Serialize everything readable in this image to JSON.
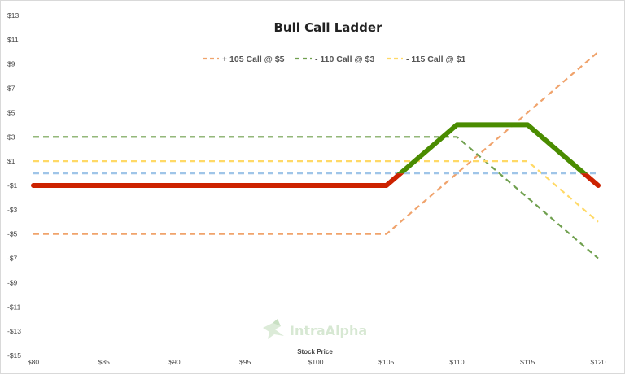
{
  "chart_data": {
    "type": "line",
    "title": "Bull Call Ladder",
    "xlabel": "Stock Price",
    "ylabel": "",
    "xlim": [
      80,
      120
    ],
    "ylim": [
      -15,
      13
    ],
    "x_ticks": [
      80,
      85,
      90,
      95,
      100,
      105,
      110,
      115,
      120
    ],
    "x_tick_labels": [
      "$80",
      "$85",
      "$90",
      "$95",
      "$100",
      "$105",
      "$110",
      "$115",
      "$120"
    ],
    "y_ticks": [
      13,
      11,
      9,
      7,
      5,
      3,
      1,
      -1,
      -3,
      -5,
      -7,
      -9,
      -11,
      -13,
      -15
    ],
    "y_tick_labels": [
      "$13",
      "$11",
      "$9",
      "$7",
      "$5",
      "$3",
      "$1",
      "-$1",
      "-$3",
      "-$5",
      "-$7",
      "-$9",
      "-$11",
      "-$13",
      "-$15"
    ],
    "legend_position": "top-center",
    "series": [
      {
        "name": "+ 105 Call @ $5",
        "style": "dashed",
        "color": "#f0a36c",
        "points": [
          [
            80,
            -5
          ],
          [
            105,
            -5
          ],
          [
            120,
            10
          ]
        ]
      },
      {
        "name": "- 110 Call @ $3",
        "style": "dashed",
        "color": "#70a04f",
        "points": [
          [
            80,
            3
          ],
          [
            110,
            3
          ],
          [
            120,
            -7
          ]
        ]
      },
      {
        "name": "- 115 Call @ $1",
        "style": "dashed",
        "color": "#ffd966",
        "points": [
          [
            80,
            1
          ],
          [
            115,
            1
          ],
          [
            120,
            -4
          ]
        ]
      },
      {
        "name": "",
        "style": "dashed",
        "color": "#9fc5e8",
        "points": [
          [
            80,
            0
          ],
          [
            120,
            0
          ]
        ]
      },
      {
        "name": "",
        "style": "solid",
        "color": "#cc2200",
        "profit_color": "#4a8c00",
        "points": [
          [
            80,
            -1
          ],
          [
            105,
            -1
          ],
          [
            110,
            4
          ],
          [
            115,
            4
          ],
          [
            120,
            -1
          ]
        ]
      }
    ]
  },
  "watermark": {
    "text": "IntraAlpha"
  }
}
